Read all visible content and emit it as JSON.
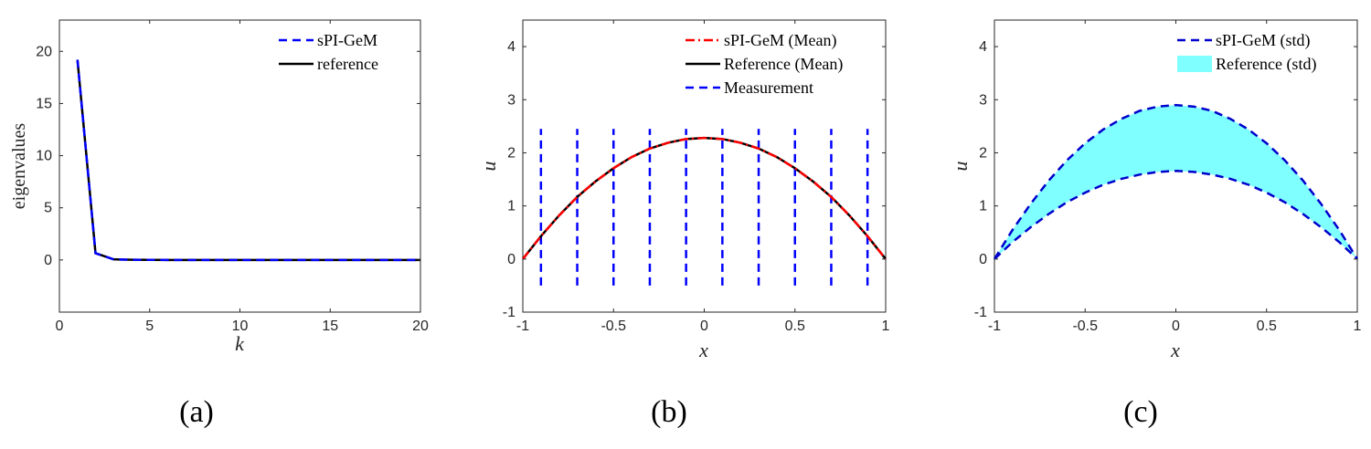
{
  "chart_data": [
    {
      "type": "line",
      "panel_label": "(a)",
      "xlabel": "k",
      "ylabel": "eigenvalues",
      "xlim": [
        0,
        20
      ],
      "ylim": [
        -5,
        23
      ],
      "xticks": [
        0,
        5,
        10,
        15,
        20
      ],
      "yticks": [
        0,
        5,
        10,
        15,
        20
      ],
      "grid": false,
      "legend_position": "top-right",
      "series": [
        {
          "name": "sPI-GeM",
          "style": "dashed",
          "color": "#0000ff",
          "x": [
            1,
            2,
            3,
            4,
            5,
            6,
            7,
            8,
            9,
            10,
            11,
            12,
            13,
            14,
            15,
            16,
            17,
            18,
            19,
            20
          ],
          "y": [
            19.2,
            0.65,
            0.06,
            0.02,
            0.01,
            0,
            0,
            0,
            0,
            0,
            0,
            0,
            0,
            0,
            0,
            0,
            0,
            0,
            0,
            0
          ]
        },
        {
          "name": "reference",
          "style": "solid",
          "color": "#000000",
          "x": [
            1,
            2,
            3,
            4,
            5,
            6,
            7,
            8,
            9,
            10,
            11,
            12,
            13,
            14,
            15,
            16,
            17,
            18,
            19,
            20
          ],
          "y": [
            19.2,
            0.65,
            0.06,
            0.02,
            0.01,
            0,
            0,
            0,
            0,
            0,
            0,
            0,
            0,
            0,
            0,
            0,
            0,
            0,
            0,
            0
          ]
        }
      ]
    },
    {
      "type": "line",
      "panel_label": "(b)",
      "xlabel": "x",
      "ylabel": "u",
      "xlim": [
        -1,
        1
      ],
      "ylim": [
        -1,
        4.5
      ],
      "xticks": [
        -1,
        -0.5,
        0,
        0.5,
        1
      ],
      "xtick_labels": [
        "-1",
        "-0.5",
        "0",
        "0.5",
        "1"
      ],
      "yticks": [
        -1,
        0,
        1,
        2,
        3,
        4
      ],
      "grid": false,
      "legend_position": "top-right",
      "series": [
        {
          "name": "sPI-GeM (Mean)",
          "style": "dashdot",
          "color": "#ff0000",
          "x": [
            -1,
            -0.9,
            -0.8,
            -0.7,
            -0.6,
            -0.5,
            -0.4,
            -0.3,
            -0.2,
            -0.1,
            0,
            0.1,
            0.2,
            0.3,
            0.4,
            0.5,
            0.6,
            0.7,
            0.8,
            0.9,
            1
          ],
          "y": [
            0,
            0.43,
            0.82,
            1.17,
            1.46,
            1.71,
            1.92,
            2.08,
            2.19,
            2.26,
            2.28,
            2.26,
            2.19,
            2.08,
            1.92,
            1.71,
            1.46,
            1.17,
            0.82,
            0.43,
            0
          ]
        },
        {
          "name": "Reference (Mean)",
          "style": "solid",
          "color": "#000000",
          "x": [
            -1,
            -0.9,
            -0.8,
            -0.7,
            -0.6,
            -0.5,
            -0.4,
            -0.3,
            -0.2,
            -0.1,
            0,
            0.1,
            0.2,
            0.3,
            0.4,
            0.5,
            0.6,
            0.7,
            0.8,
            0.9,
            1
          ],
          "y": [
            0,
            0.43,
            0.82,
            1.17,
            1.46,
            1.71,
            1.92,
            2.08,
            2.19,
            2.26,
            2.28,
            2.26,
            2.19,
            2.08,
            1.92,
            1.71,
            1.46,
            1.17,
            0.82,
            0.43,
            0
          ]
        }
      ],
      "measurement": {
        "name": "Measurement",
        "style": "dashed",
        "color": "#0000ff",
        "x": [
          -0.9,
          -0.7,
          -0.5,
          -0.3,
          -0.1,
          0.1,
          0.3,
          0.5,
          0.7,
          0.9
        ],
        "y_range": [
          -0.5,
          2.45
        ]
      }
    },
    {
      "type": "area",
      "panel_label": "(c)",
      "xlabel": "x",
      "ylabel": "u",
      "xlim": [
        -1,
        1
      ],
      "ylim": [
        -1,
        4.5
      ],
      "xticks": [
        -1,
        -0.5,
        0,
        0.5,
        1
      ],
      "xtick_labels": [
        "-1",
        "-0.5",
        "0",
        "0.5",
        "1"
      ],
      "yticks": [
        -1,
        0,
        1,
        2,
        3,
        4
      ],
      "grid": false,
      "legend_position": "top-right",
      "band": {
        "name": "Reference (std)",
        "color": "#7fffff",
        "x": [
          -1,
          -0.9,
          -0.8,
          -0.7,
          -0.6,
          -0.5,
          -0.4,
          -0.3,
          -0.2,
          -0.1,
          0,
          0.1,
          0.2,
          0.3,
          0.4,
          0.5,
          0.6,
          0.7,
          0.8,
          0.9,
          1
        ],
        "lower": [
          0,
          0.32,
          0.6,
          0.85,
          1.07,
          1.25,
          1.4,
          1.51,
          1.59,
          1.64,
          1.66,
          1.64,
          1.59,
          1.51,
          1.4,
          1.25,
          1.07,
          0.85,
          0.6,
          0.32,
          0
        ],
        "upper": [
          0,
          0.55,
          1.04,
          1.48,
          1.86,
          2.18,
          2.44,
          2.64,
          2.79,
          2.87,
          2.9,
          2.87,
          2.79,
          2.64,
          2.44,
          2.18,
          1.86,
          1.48,
          1.04,
          0.55,
          0
        ]
      },
      "series": [
        {
          "name": "sPI-GeM (std)",
          "style": "dashed",
          "color": "#0000cc",
          "x": [
            -1,
            -0.9,
            -0.8,
            -0.7,
            -0.6,
            -0.5,
            -0.4,
            -0.3,
            -0.2,
            -0.1,
            0,
            0.1,
            0.2,
            0.3,
            0.4,
            0.5,
            0.6,
            0.7,
            0.8,
            0.9,
            1
          ],
          "y": [
            0,
            0.55,
            1.04,
            1.48,
            1.86,
            2.18,
            2.44,
            2.64,
            2.79,
            2.87,
            2.9,
            2.87,
            2.79,
            2.64,
            2.44,
            2.18,
            1.86,
            1.48,
            1.04,
            0.55,
            0
          ]
        },
        {
          "name": "",
          "style": "dashed",
          "color": "#0000cc",
          "x": [
            -1,
            -0.9,
            -0.8,
            -0.7,
            -0.6,
            -0.5,
            -0.4,
            -0.3,
            -0.2,
            -0.1,
            0,
            0.1,
            0.2,
            0.3,
            0.4,
            0.5,
            0.6,
            0.7,
            0.8,
            0.9,
            1
          ],
          "y": [
            0,
            0.32,
            0.6,
            0.85,
            1.07,
            1.25,
            1.4,
            1.51,
            1.59,
            1.64,
            1.66,
            1.64,
            1.59,
            1.51,
            1.4,
            1.25,
            1.07,
            0.85,
            0.6,
            0.32,
            0
          ]
        }
      ]
    }
  ]
}
